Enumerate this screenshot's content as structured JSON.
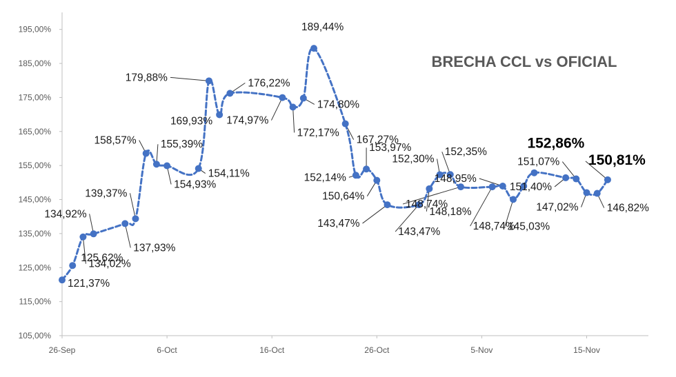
{
  "chart_data": {
    "type": "line",
    "title": "BRECHA CCL vs OFICIAL",
    "xlabel": "",
    "ylabel": "",
    "ylim": [
      105,
      200
    ],
    "y_ticks": [
      "105,00%",
      "115,00%",
      "125,00%",
      "135,00%",
      "145,00%",
      "155,00%",
      "165,00%",
      "175,00%",
      "185,00%",
      "195,00%"
    ],
    "y_tick_values": [
      105,
      115,
      125,
      135,
      145,
      155,
      165,
      175,
      185,
      195
    ],
    "x_ticks": [
      "26-Sep",
      "6-Oct",
      "16-Oct",
      "26-Oct",
      "5-Nov",
      "15-Nov"
    ],
    "x_tick_days": [
      0,
      10,
      20,
      30,
      40,
      50
    ],
    "series": [
      {
        "color": "#4472C4",
        "line_style": "dashed",
        "points": [
          {
            "x": "26-Sep",
            "y": 121.37,
            "label": "121,37%"
          },
          {
            "x": "27-Sep",
            "y": 125.62,
            "label": "125,62%"
          },
          {
            "x": "28-Sep",
            "y": 134.02,
            "label": "134,02%"
          },
          {
            "x": "29-Sep",
            "y": 134.92,
            "label": "134,92%"
          },
          {
            "x": "2-Oct",
            "y": 137.93,
            "label": "137,93%"
          },
          {
            "x": "3-Oct",
            "y": 139.37,
            "label": "139,37%"
          },
          {
            "x": "4-Oct",
            "y": 158.57,
            "label": "158,57%"
          },
          {
            "x": "5-Oct",
            "y": 155.39,
            "label": "155,39%"
          },
          {
            "x": "6-Oct",
            "y": 154.93,
            "label": "154,93%"
          },
          {
            "x": "9-Oct",
            "y": 154.11,
            "label": "154,11%"
          },
          {
            "x": "10-Oct",
            "y": 179.88,
            "label": "179,88%"
          },
          {
            "x": "11-Oct",
            "y": 169.93,
            "label": "169,93%"
          },
          {
            "x": "12-Oct",
            "y": 176.22,
            "label": "176,22%"
          },
          {
            "x": "17-Oct",
            "y": 174.97,
            "label": "174,97%"
          },
          {
            "x": "18-Oct",
            "y": 172.17,
            "label": "172,17%"
          },
          {
            "x": "19-Oct",
            "y": 174.8,
            "label": "174,80%"
          },
          {
            "x": "20-Oct",
            "y": 189.44,
            "label": "189,44%"
          },
          {
            "x": "23-Oct",
            "y": 167.27,
            "label": "167,27%"
          },
          {
            "x": "24-Oct",
            "y": 152.14,
            "label": "152,14%"
          },
          {
            "x": "25-Oct",
            "y": 153.97,
            "label": "153,97%"
          },
          {
            "x": "26-Oct",
            "y": 150.64,
            "label": "150,64%"
          },
          {
            "x": "27-Oct",
            "y": 143.47,
            "label": "143,47%"
          },
          {
            "x": "30-Oct",
            "y": 143.47,
            "label": "143,47%"
          },
          {
            "x": "31-Oct",
            "y": 148.18,
            "label": "148,18%"
          },
          {
            "x": "1-Nov",
            "y": 152.3,
            "label": "152,30%"
          },
          {
            "x": "2-Nov",
            "y": 152.35,
            "label": "152,35%"
          },
          {
            "x": "3-Nov",
            "y": 148.74,
            "label": "148,74%"
          },
          {
            "x": "6-Nov",
            "y": 148.74,
            "label": "148,74%"
          },
          {
            "x": "7-Nov",
            "y": 148.95,
            "label": "148,95%"
          },
          {
            "x": "8-Nov",
            "y": 145.03,
            "label": "145,03%"
          },
          {
            "x": "9-Nov",
            "y": 148.95,
            "label": ""
          },
          {
            "x": "10-Nov",
            "y": 152.86,
            "label": "152,86%",
            "emphasis": true
          },
          {
            "x": "13-Nov",
            "y": 151.4,
            "label": "151,40%"
          },
          {
            "x": "14-Nov",
            "y": 151.07,
            "label": "151,07%"
          },
          {
            "x": "15-Nov",
            "y": 147.02,
            "label": "147,02%"
          },
          {
            "x": "16-Nov",
            "y": 146.82,
            "label": "146,82%"
          },
          {
            "x": "17-Nov",
            "y": 150.81,
            "label": "150,81%",
            "emphasis": true
          }
        ]
      }
    ],
    "grid": false,
    "legend": "none"
  }
}
